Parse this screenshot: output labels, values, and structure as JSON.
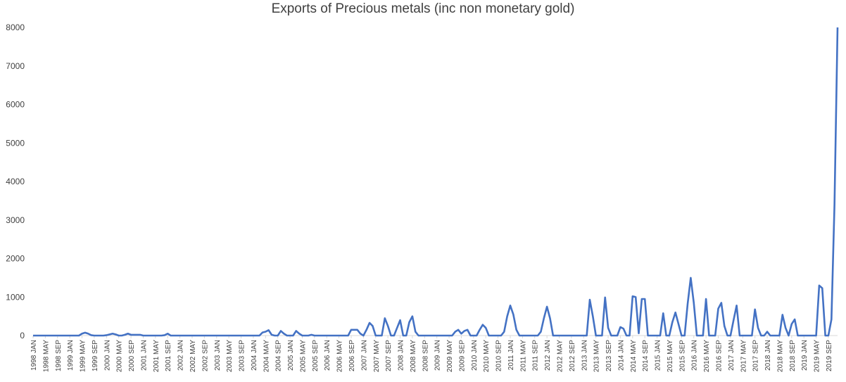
{
  "chart_data": {
    "type": "line",
    "title": "Exports of Precious metals (inc non monetary gold)",
    "xlabel": "",
    "ylabel": "",
    "ylim": [
      0,
      8000
    ],
    "yticks": [
      0,
      1000,
      2000,
      3000,
      4000,
      5000,
      6000,
      7000,
      8000
    ],
    "grid": false,
    "legend": "none",
    "line_color": "#4472C4",
    "x_tick_labels": [
      "1998 JAN",
      "1998 MAY",
      "1998 SEP",
      "1999 JAN",
      "1999 MAY",
      "1999 SEP",
      "2000 JAN",
      "2000 MAY",
      "2000 SEP",
      "2001 JAN",
      "2001 MAY",
      "2001 SEP",
      "2002 JAN",
      "2002 MAY",
      "2002 SEP",
      "2003 JAN",
      "2003 MAY",
      "2003 SEP",
      "2004 JAN",
      "2004 MAY",
      "2004 SEP",
      "2005 JAN",
      "2005 MAY",
      "2005 SEP",
      "2006 JAN",
      "2006 MAY",
      "2006 SEP",
      "2007 JAN",
      "2007 MAY",
      "2007 SEP",
      "2008 JAN",
      "2008 MAY",
      "2008 SEP",
      "2009 JAN",
      "2009 MAY",
      "2009 SEP",
      "2010 JAN",
      "2010 MAY",
      "2010 SEP",
      "2011 JAN",
      "2011 MAY",
      "2011 SEP",
      "2012 JAN",
      "2012 MAY",
      "2012 SEP",
      "2013 JAN",
      "2013 MAY",
      "2013 SEP",
      "2014 JAN",
      "2014 MAY",
      "2014 SEP",
      "2015 JAN",
      "2015 MAY",
      "2015 SEP",
      "2016 JAN",
      "2016 MAY",
      "2016 SEP",
      "2017 JAN",
      "2017 MAY",
      "2017 SEP",
      "2018 JAN",
      "2018 MAY",
      "2018 SEP",
      "2019 JAN",
      "2019 MAY",
      "2019 SEP"
    ],
    "series": [
      {
        "values": [
          0,
          0,
          0,
          0,
          0,
          0,
          0,
          0,
          0,
          0,
          0,
          0,
          0,
          0,
          0,
          0,
          50,
          75,
          50,
          10,
          0,
          0,
          0,
          0,
          10,
          30,
          50,
          30,
          0,
          0,
          20,
          50,
          20,
          20,
          20,
          20,
          0,
          0,
          0,
          0,
          0,
          0,
          0,
          10,
          50,
          0,
          0,
          0,
          0,
          0,
          0,
          0,
          0,
          0,
          0,
          0,
          0,
          0,
          0,
          0,
          0,
          0,
          0,
          0,
          0,
          0,
          0,
          0,
          0,
          0,
          0,
          0,
          0,
          0,
          0,
          80,
          100,
          140,
          20,
          0,
          0,
          120,
          50,
          0,
          0,
          0,
          120,
          50,
          0,
          0,
          0,
          20,
          0,
          0,
          0,
          0,
          0,
          0,
          0,
          0,
          0,
          0,
          0,
          0,
          150,
          150,
          150,
          50,
          0,
          150,
          330,
          250,
          0,
          0,
          0,
          450,
          250,
          0,
          0,
          200,
          400,
          0,
          0,
          350,
          500,
          100,
          0,
          0,
          0,
          0,
          0,
          0,
          0,
          0,
          0,
          0,
          0,
          0,
          100,
          150,
          50,
          120,
          150,
          0,
          0,
          0,
          150,
          280,
          200,
          0,
          0,
          0,
          0,
          0,
          100,
          500,
          780,
          550,
          150,
          0,
          0,
          0,
          0,
          0,
          0,
          0,
          100,
          450,
          750,
          450,
          0,
          0,
          0,
          0,
          0,
          0,
          0,
          0,
          0,
          0,
          0,
          0,
          930,
          500,
          0,
          0,
          0,
          990,
          200,
          0,
          0,
          0,
          220,
          180,
          0,
          0,
          1020,
          1000,
          60,
          950,
          950,
          0,
          0,
          0,
          0,
          0,
          580,
          0,
          0,
          350,
          600,
          300,
          0,
          0,
          830,
          1500,
          850,
          0,
          0,
          0,
          950,
          0,
          0,
          0,
          700,
          850,
          250,
          0,
          0,
          400,
          780,
          0,
          0,
          0,
          0,
          0,
          680,
          200,
          0,
          0,
          100,
          0,
          0,
          0,
          0,
          540,
          200,
          0,
          300,
          420,
          0,
          0,
          0,
          0,
          0,
          0,
          0,
          1300,
          1230,
          0,
          0,
          420,
          3400,
          8000
        ]
      }
    ]
  }
}
